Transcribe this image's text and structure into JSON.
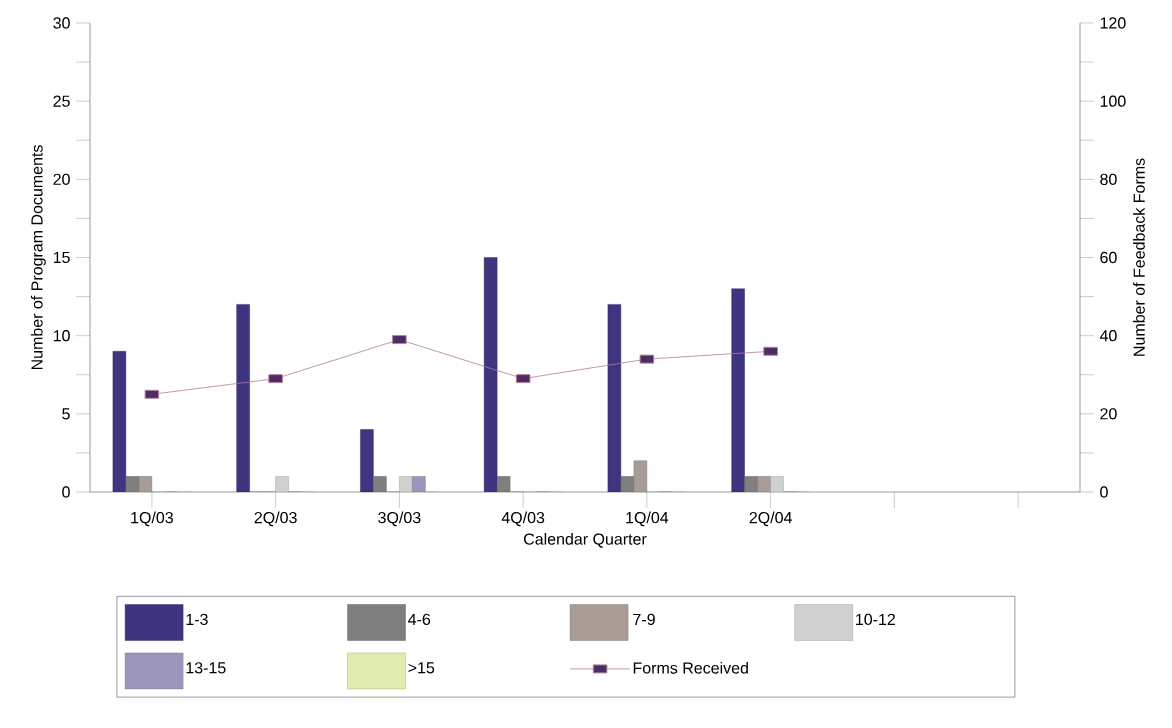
{
  "chart_data": {
    "type": "bar",
    "xlabel": "Calendar Quarter",
    "ylabel": "Number of Program Documents",
    "y2label": "Number of Feedback Forms",
    "categories": [
      "1Q/03",
      "2Q/03",
      "3Q/03",
      "4Q/03",
      "1Q/04",
      "2Q/04",
      null,
      null
    ],
    "series": [
      {
        "name": "1-3",
        "color": "#3f3480",
        "values": [
          9,
          12,
          4,
          15,
          12,
          13,
          null,
          null
        ]
      },
      {
        "name": "4-6",
        "color": "#7f7f7f",
        "values": [
          1,
          0,
          1,
          1,
          1,
          1,
          null,
          null
        ]
      },
      {
        "name": "7-9",
        "color": "#a89c94",
        "values": [
          1,
          0,
          0,
          0,
          2,
          1,
          null,
          null
        ]
      },
      {
        "name": "10-12",
        "color": "#d0d0d0",
        "values": [
          0,
          1,
          1,
          0,
          0,
          1,
          null,
          null
        ]
      },
      {
        "name": "13-15",
        "color": "#9c96bc",
        "values": [
          0,
          0,
          1,
          0,
          0,
          0,
          null,
          null
        ]
      },
      {
        "name": ">15",
        "color": "#e0ebb0",
        "values": [
          0,
          0,
          0,
          0,
          0,
          0,
          null,
          null
        ]
      },
      {
        "name": "Forms Received",
        "type": "line",
        "axis": "y2",
        "marker": "square",
        "color": "#4a2d62",
        "values": [
          25,
          29,
          39,
          29,
          34,
          36,
          null,
          null
        ]
      }
    ],
    "ylim": [
      0,
      30
    ],
    "yticks": [
      0,
      {
        "value": 2.5,
        "label": null
      },
      5,
      {
        "value": 7.5,
        "label": null
      },
      10,
      {
        "value": 12.5,
        "label": null
      },
      15,
      {
        "value": 17.5,
        "label": null
      },
      20,
      {
        "value": 22.5,
        "label": null
      },
      25,
      {
        "value": 27.5,
        "label": null
      },
      30
    ],
    "y2lim": [
      0,
      120
    ],
    "y2ticks": [
      0,
      {
        "value": 10,
        "label": null
      },
      20,
      {
        "value": 30,
        "label": null
      },
      40,
      {
        "value": 50,
        "label": null
      },
      60,
      {
        "value": 70,
        "label": null
      },
      80,
      {
        "value": 90,
        "label": null
      },
      100,
      {
        "value": 110,
        "label": null
      },
      120
    ],
    "legend": "bottom"
  }
}
